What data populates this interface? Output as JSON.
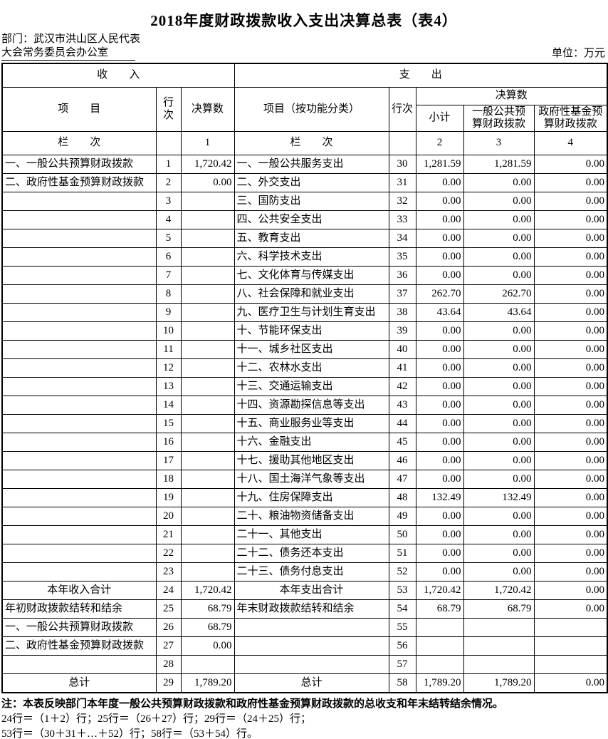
{
  "title": "2018年度财政拨款收入支出决算总表（表4）",
  "meta": {
    "department_line1": "部门：武汉市洪山区人民代表",
    "department_line2": "大会常务委员会办公室",
    "unit_label": "单位：万元"
  },
  "table": {
    "section_headers": {
      "income": "收　　入",
      "expenditure": "支　　出"
    },
    "columns": {
      "income_item": "项　　目",
      "income_row_no": "行次",
      "income_amount": "决算数",
      "exp_item": "项目（按功能分类）",
      "exp_row_no": "行次",
      "exp_amount_group": "决算数",
      "exp_subtotal": "小计",
      "exp_general_budget": "一般公共预\n算财政拨款",
      "exp_gov_fund": "政府性基金预\n算财政拨款"
    },
    "column_index_row": {
      "income_label": "栏　　次",
      "col1": "1",
      "exp_label": "栏　　次",
      "col2": "2",
      "col3": "3",
      "col4": "4"
    },
    "centered_label_rows": [
      23,
      28
    ],
    "rows": [
      [
        "一、一般公共预算财政拨款",
        "1",
        "1,720.42",
        "一、一般公共服务支出",
        "30",
        "1,281.59",
        "1,281.59",
        "0.00"
      ],
      [
        "二、政府性基金预算财政拨款",
        "2",
        "0.00",
        "二、外交支出",
        "31",
        "0.00",
        "0.00",
        "0.00"
      ],
      [
        "",
        "3",
        "",
        "三、国防支出",
        "32",
        "0.00",
        "0.00",
        "0.00"
      ],
      [
        "",
        "4",
        "",
        "四、公共安全支出",
        "33",
        "0.00",
        "0.00",
        "0.00"
      ],
      [
        "",
        "5",
        "",
        "五、教育支出",
        "34",
        "0.00",
        "0.00",
        "0.00"
      ],
      [
        "",
        "6",
        "",
        "六、科学技术支出",
        "35",
        "0.00",
        "0.00",
        "0.00"
      ],
      [
        "",
        "7",
        "",
        "七、文化体育与传媒支出",
        "36",
        "0.00",
        "0.00",
        "0.00"
      ],
      [
        "",
        "8",
        "",
        "八、社会保障和就业支出",
        "37",
        "262.70",
        "262.70",
        "0.00"
      ],
      [
        "",
        "9",
        "",
        "九、医疗卫生与计划生育支出",
        "38",
        "43.64",
        "43.64",
        "0.00"
      ],
      [
        "",
        "10",
        "",
        "十、节能环保支出",
        "39",
        "0.00",
        "0.00",
        "0.00"
      ],
      [
        "",
        "11",
        "",
        "十一、城乡社区支出",
        "40",
        "0.00",
        "0.00",
        "0.00"
      ],
      [
        "",
        "12",
        "",
        "十二、农林水支出",
        "41",
        "0.00",
        "0.00",
        "0.00"
      ],
      [
        "",
        "13",
        "",
        "十三、交通运输支出",
        "42",
        "0.00",
        "0.00",
        "0.00"
      ],
      [
        "",
        "14",
        "",
        "十四、资源勘探信息等支出",
        "43",
        "0.00",
        "0.00",
        "0.00"
      ],
      [
        "",
        "15",
        "",
        "十五、商业服务业等支出",
        "44",
        "0.00",
        "0.00",
        "0.00"
      ],
      [
        "",
        "16",
        "",
        "十六、金融支出",
        "45",
        "0.00",
        "0.00",
        "0.00"
      ],
      [
        "",
        "17",
        "",
        "十七、援助其他地区支出",
        "46",
        "0.00",
        "0.00",
        "0.00"
      ],
      [
        "",
        "18",
        "",
        "十八、国土海洋气象等支出",
        "47",
        "0.00",
        "0.00",
        "0.00"
      ],
      [
        "",
        "19",
        "",
        "十九、住房保障支出",
        "48",
        "132.49",
        "132.49",
        "0.00"
      ],
      [
        "",
        "20",
        "",
        "二十、粮油物资储备支出",
        "49",
        "0.00",
        "0.00",
        "0.00"
      ],
      [
        "",
        "21",
        "",
        "二十一、其他支出",
        "50",
        "0.00",
        "0.00",
        "0.00"
      ],
      [
        "",
        "22",
        "",
        "二十二、债务还本支出",
        "51",
        "0.00",
        "0.00",
        "0.00"
      ],
      [
        "",
        "23",
        "",
        "二十三、债务付息支出",
        "52",
        "0.00",
        "0.00",
        "0.00"
      ],
      [
        "本年收入合计",
        "24",
        "1,720.42",
        "本年支出合计",
        "53",
        "1,720.42",
        "1,720.42",
        "0.00"
      ],
      [
        "年初财政拨款结转和结余",
        "25",
        "68.79",
        "年末财政拨款结转和结余",
        "54",
        "68.79",
        "68.79",
        "0.00"
      ],
      [
        "一、一般公共预算财政拨款",
        "26",
        "68.79",
        "",
        "55",
        "",
        "",
        ""
      ],
      [
        "二、政府性基金预算财政拨款",
        "27",
        "0.00",
        "",
        "56",
        "",
        "",
        ""
      ],
      [
        "",
        "28",
        "",
        "",
        "57",
        "",
        "",
        ""
      ],
      [
        "总计",
        "29",
        "1,789.20",
        "总计",
        "58",
        "1,789.20",
        "1,789.20",
        "0.00"
      ]
    ]
  },
  "notes": [
    "注：本表反映部门本年度一般公共预算财政拨款和政府性基金预算财政拨款的总收支和年末结转结余情况。",
    "24行＝（1＋2）行；25行＝（26＋27）行；29行＝（24＋25）行；",
    "53行＝（30＋31＋…＋52）行；58行＝（53＋54）行。"
  ]
}
